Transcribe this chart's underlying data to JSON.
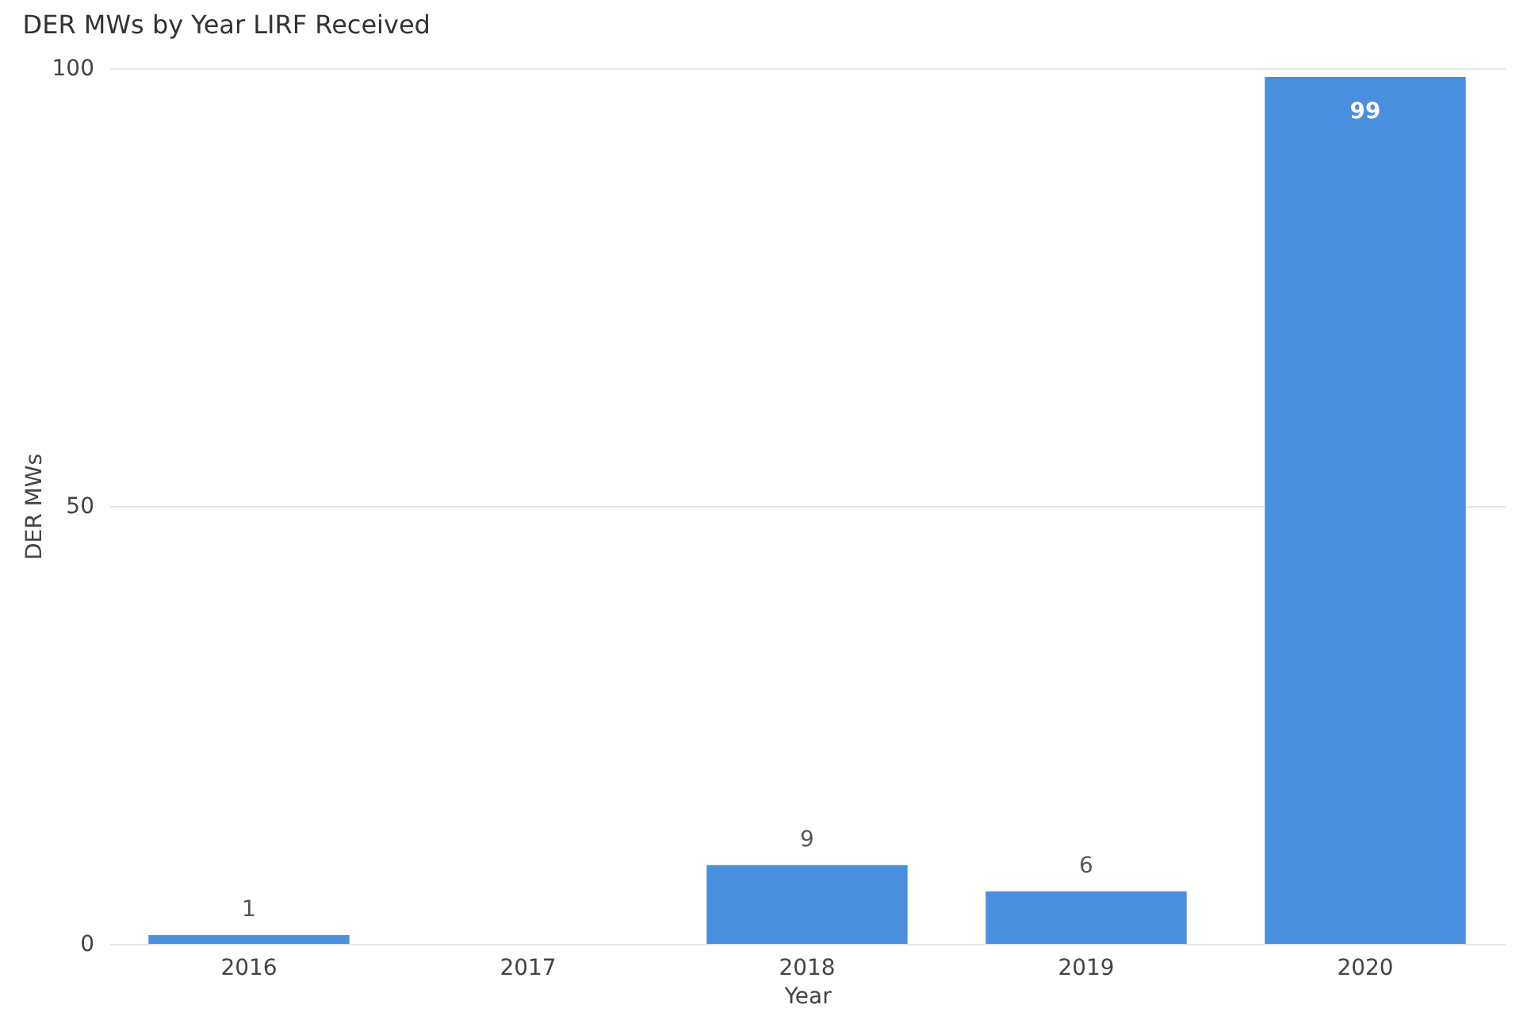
{
  "chart_data": {
    "type": "bar",
    "title": "DER MWs by Year LIRF Received",
    "xlabel": "Year",
    "ylabel": "DER MWs",
    "categories": [
      "2016",
      "2017",
      "2018",
      "2019",
      "2020"
    ],
    "values": [
      1,
      null,
      9,
      6,
      99
    ],
    "color": "#4a8fde",
    "ylim": [
      0,
      100
    ],
    "yticks": [
      0,
      50,
      100
    ],
    "grid": "y",
    "data_labels": true
  }
}
